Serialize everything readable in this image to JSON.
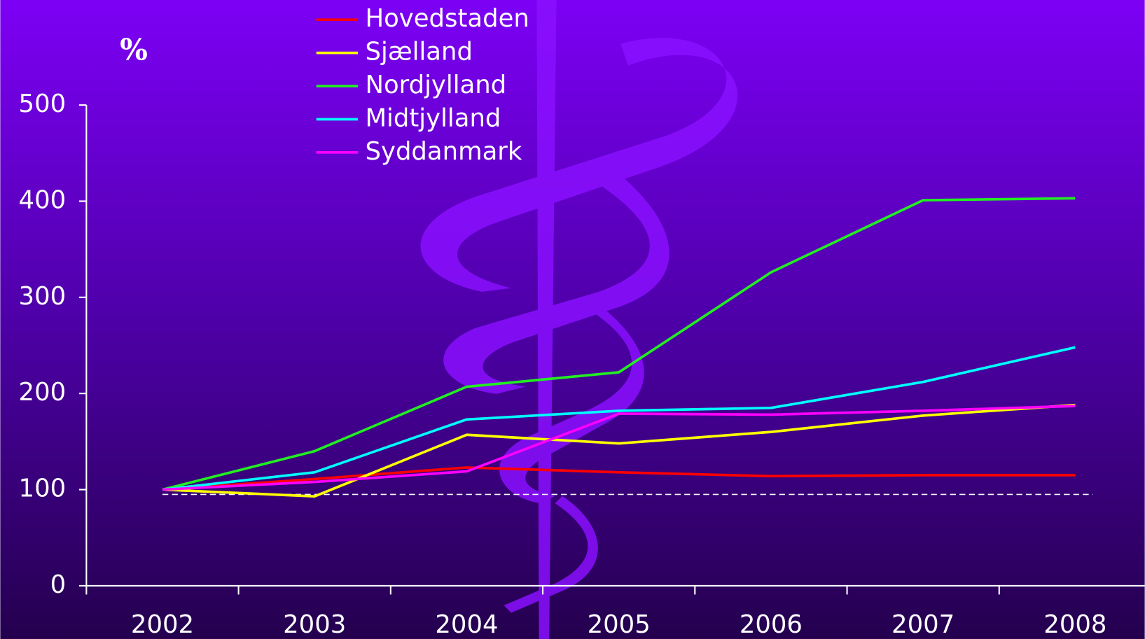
{
  "chart_data": {
    "type": "line",
    "title": "%",
    "categories": [
      "2002",
      "2003",
      "2004",
      "2005",
      "2006",
      "2007",
      "2008"
    ],
    "series": [
      {
        "name": "Hovedstaden",
        "color": "#ff0000",
        "values": [
          100,
          111,
          123,
          118,
          114,
          115,
          115
        ]
      },
      {
        "name": "Sjælland",
        "color": "#ffff00",
        "values": [
          100,
          93,
          157,
          148,
          160,
          177,
          188
        ]
      },
      {
        "name": "Nordjylland",
        "color": "#22ee22",
        "values": [
          100,
          140,
          207,
          222,
          326,
          401,
          403
        ]
      },
      {
        "name": "Midtjylland",
        "color": "#00ffff",
        "values": [
          100,
          118,
          173,
          182,
          185,
          212,
          248
        ]
      },
      {
        "name": "Syddanmark",
        "color": "#ff00ff",
        "values": [
          100,
          108,
          119,
          179,
          178,
          182,
          187
        ]
      }
    ],
    "reference_line": 95,
    "ylim": [
      0,
      500
    ],
    "yticks": [
      0,
      100,
      200,
      300,
      400,
      500
    ],
    "grid": false,
    "legend": "top"
  }
}
